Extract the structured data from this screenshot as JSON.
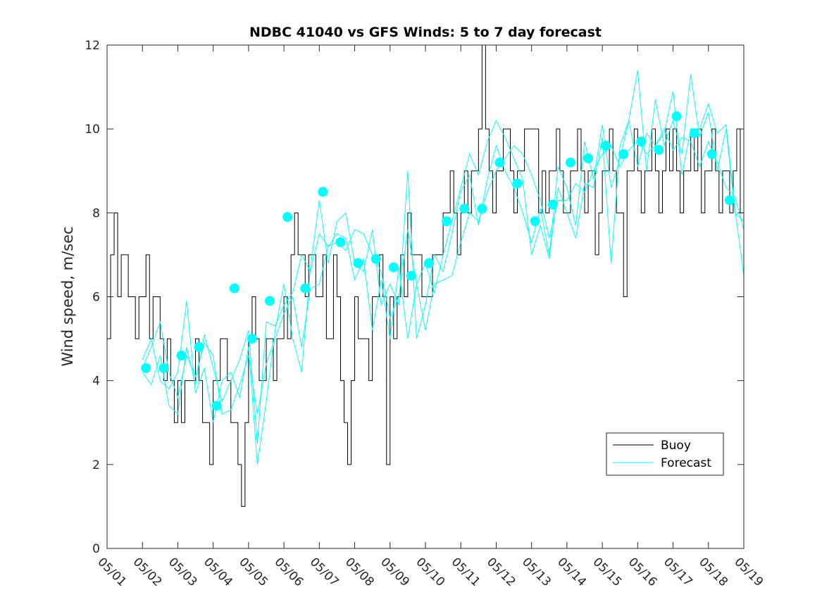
{
  "chart_data": {
    "type": "line",
    "title": "NDBC 41040 vs GFS Winds: 5 to 7 day forecast",
    "xlabel": "",
    "ylabel": "Wind speed, m/sec",
    "ylim": [
      0,
      12
    ],
    "xlim": [
      0,
      18
    ],
    "yticks": [
      0,
      2,
      4,
      6,
      8,
      10,
      12
    ],
    "xtick_labels": [
      "05/01",
      "05/02",
      "05/03",
      "05/04",
      "05/05",
      "05/06",
      "05/07",
      "05/08",
      "05/09",
      "05/10",
      "05/11",
      "05/12",
      "05/13",
      "05/14",
      "05/15",
      "05/16",
      "05/17",
      "05/18",
      "05/19"
    ],
    "grid": false,
    "legend": {
      "position": "lower-right",
      "entries": [
        {
          "label": "Buoy",
          "color": "#000000"
        },
        {
          "label": "Forecast",
          "color": "#00ffff"
        }
      ]
    },
    "series": [
      {
        "name": "Buoy",
        "color": "#000000",
        "x": [
          0,
          0.1,
          0.2,
          0.3,
          0.4,
          0.5,
          0.6,
          0.7,
          0.8,
          0.9,
          1.0,
          1.1,
          1.2,
          1.3,
          1.4,
          1.5,
          1.6,
          1.7,
          1.8,
          1.9,
          2.0,
          2.1,
          2.2,
          2.3,
          2.4,
          2.5,
          2.6,
          2.7,
          2.8,
          2.9,
          3.0,
          3.1,
          3.2,
          3.3,
          3.4,
          3.5,
          3.6,
          3.7,
          3.8,
          3.9,
          4.0,
          4.1,
          4.2,
          4.3,
          4.4,
          4.5,
          4.6,
          4.7,
          4.8,
          4.9,
          5.0,
          5.1,
          5.2,
          5.3,
          5.4,
          5.5,
          5.6,
          5.7,
          5.8,
          5.9,
          6.0,
          6.1,
          6.2,
          6.3,
          6.4,
          6.5,
          6.6,
          6.7,
          6.8,
          6.9,
          7.0,
          7.1,
          7.2,
          7.3,
          7.4,
          7.5,
          7.6,
          7.7,
          7.8,
          7.9,
          8.0,
          8.1,
          8.2,
          8.3,
          8.4,
          8.5,
          8.6,
          8.7,
          8.8,
          8.9,
          9.0,
          9.1,
          9.2,
          9.3,
          9.4,
          9.5,
          9.6,
          9.7,
          9.8,
          9.9,
          10.0,
          10.1,
          10.2,
          10.3,
          10.4,
          10.5,
          10.6,
          10.7,
          10.8,
          10.9,
          11.0,
          11.1,
          11.2,
          11.3,
          11.4,
          11.5,
          11.6,
          11.7,
          11.8,
          11.9,
          12.0,
          12.1,
          12.2,
          12.3,
          12.4,
          12.5,
          12.6,
          12.7,
          12.8,
          12.9,
          13.0,
          13.1,
          13.2,
          13.3,
          13.4,
          13.5,
          13.6,
          13.7,
          13.8,
          13.9,
          14.0,
          14.1,
          14.2,
          14.3,
          14.4,
          14.5,
          14.6,
          14.7,
          14.8,
          14.9,
          15.0,
          15.1,
          15.2,
          15.3,
          15.4,
          15.5,
          15.6,
          15.7,
          15.8,
          15.9,
          16.0,
          16.1,
          16.2,
          16.3,
          16.4,
          16.5,
          16.6,
          16.7,
          16.8,
          16.9,
          17.0,
          17.1,
          17.2,
          17.3,
          17.4,
          17.5,
          17.6,
          17.7,
          17.8,
          17.9
        ],
        "values": [
          5,
          7,
          8,
          6,
          7,
          7,
          6,
          6,
          5,
          6,
          6,
          7,
          5,
          6,
          6,
          5,
          4,
          5,
          4,
          3,
          4,
          3,
          4,
          4,
          4,
          5,
          4,
          3,
          3,
          2,
          4,
          4,
          5,
          5,
          4,
          3,
          3,
          2,
          1,
          3,
          5,
          6,
          5,
          4,
          4,
          5,
          5,
          4,
          5,
          5,
          6,
          5,
          7,
          8,
          7,
          7,
          6,
          7,
          7,
          6,
          6,
          7,
          5,
          5,
          7,
          6,
          4,
          3,
          2,
          4,
          6,
          5,
          5,
          5,
          4,
          6,
          6,
          7,
          6,
          2,
          6,
          5,
          6,
          7,
          6,
          8,
          7,
          7,
          7,
          6,
          6,
          6,
          7,
          7,
          7,
          8,
          8,
          9,
          8,
          7,
          8,
          9,
          8,
          9,
          9,
          10,
          12,
          10,
          9,
          8,
          9,
          9,
          10,
          10,
          9,
          8,
          9,
          9,
          10,
          10,
          10,
          10,
          8,
          9,
          8,
          9,
          9,
          10,
          9,
          8,
          8,
          9,
          9,
          10,
          9,
          8,
          9,
          9,
          7,
          8,
          9,
          9,
          10,
          9,
          8,
          8,
          6,
          9,
          9,
          10,
          9,
          8,
          9,
          9,
          10,
          9,
          8,
          9,
          10,
          9,
          10,
          9,
          8,
          9,
          9,
          10,
          9,
          10,
          8,
          9,
          9,
          10,
          9,
          8,
          9,
          9,
          8,
          9,
          10,
          8
        ]
      },
      {
        "name": "Forecast",
        "color": "#00ffff",
        "x": [
          1.0,
          1.25,
          1.5,
          1.75,
          2.0,
          2.25,
          2.5,
          2.75,
          3.0,
          3.25,
          3.5,
          3.75,
          4.0,
          4.25,
          4.5,
          4.75,
          5.0,
          5.25,
          5.5,
          5.75,
          6.0,
          6.25,
          6.5,
          6.75,
          7.0,
          7.25,
          7.5,
          7.75,
          8.0,
          8.25,
          8.5,
          8.75,
          9.0,
          9.25,
          9.5,
          9.75,
          10.0,
          10.25,
          10.5,
          10.75,
          11.0,
          11.25,
          11.5,
          11.75,
          12.0,
          12.25,
          12.5,
          12.75,
          13.0,
          13.25,
          13.5,
          13.75,
          14.0,
          14.25,
          14.5,
          14.75,
          15.0,
          15.25,
          15.5,
          15.75,
          16.0,
          16.25,
          16.5,
          16.75,
          17.0,
          17.25,
          17.5,
          17.75,
          18.0
        ],
        "values": [
          4.3,
          4.8,
          5.4,
          4.2,
          3.6,
          4.6,
          4.1,
          4.9,
          4.6,
          3.2,
          3.3,
          3.9,
          4.6,
          3.2,
          4.4,
          5.0,
          5.6,
          6.0,
          4.8,
          6.2,
          6.3,
          7.2,
          7.3,
          7.1,
          7.6,
          7.5,
          7.0,
          6.6,
          5.5,
          6.0,
          7.6,
          6.3,
          5.2,
          6.3,
          6.4,
          6.5,
          7.3,
          8.0,
          7.8,
          8.5,
          9.0,
          9.3,
          9.6,
          9.4,
          8.9,
          8.3,
          7.4,
          8.3,
          8.3,
          8.7,
          8.5,
          9.0,
          9.4,
          9.6,
          9.1,
          9.5,
          9.7,
          9.4,
          9.6,
          10.0,
          9.5,
          9.8,
          9.7,
          9.1,
          9.7,
          9.2,
          8.6,
          8.4,
          7.6
        ]
      },
      {
        "name": "Forecast",
        "color": "#00ffff",
        "x": [
          1.0,
          1.25,
          1.5,
          1.75,
          2.0,
          2.25,
          2.5,
          2.75,
          3.0,
          3.25,
          3.5,
          3.75,
          4.0,
          4.25,
          4.5,
          4.75,
          5.0,
          5.25,
          5.5,
          5.75,
          6.0,
          6.25,
          6.5,
          6.75,
          7.0,
          7.25,
          7.5,
          7.75,
          8.0,
          8.25,
          8.5,
          8.75,
          9.0,
          9.25,
          9.5,
          9.75,
          10.0,
          10.25,
          10.5,
          10.75,
          11.0,
          11.25,
          11.5,
          11.75,
          12.0,
          12.25,
          12.5,
          12.75,
          13.0,
          13.25,
          13.5,
          13.75,
          14.0,
          14.25,
          14.5,
          14.75,
          15.0,
          15.25,
          15.5,
          15.75,
          16.0,
          16.25,
          16.5,
          16.75,
          17.0,
          17.25,
          17.5,
          17.75,
          18.0
        ],
        "values": [
          4.5,
          5.0,
          4.0,
          3.8,
          4.2,
          5.9,
          3.7,
          4.3,
          3.0,
          4.0,
          4.2,
          3.6,
          4.8,
          2.0,
          3.5,
          5.2,
          6.3,
          5.0,
          4.2,
          6.7,
          8.3,
          6.8,
          7.8,
          8.0,
          6.8,
          6.6,
          7.6,
          5.8,
          6.3,
          5.8,
          9.0,
          5.0,
          5.8,
          7.0,
          6.6,
          7.5,
          8.5,
          8.9,
          7.7,
          8.8,
          9.6,
          9.0,
          8.6,
          8.0,
          7.3,
          8.1,
          7.0,
          9.1,
          8.6,
          7.7,
          9.7,
          8.8,
          10.1,
          8.6,
          9.3,
          10.2,
          11.4,
          9.0,
          10.7,
          9.6,
          10.2,
          9.4,
          11.3,
          9.8,
          10.4,
          9.0,
          10.0,
          8.0,
          7.8
        ]
      },
      {
        "name": "Forecast",
        "color": "#00ffff",
        "x": [
          1.0,
          1.25,
          1.5,
          1.75,
          2.0,
          2.25,
          2.5,
          2.75,
          3.0,
          3.25,
          3.5,
          3.75,
          4.0,
          4.25,
          4.5,
          4.75,
          5.0,
          5.25,
          5.5,
          5.75,
          6.0,
          6.25,
          6.5,
          6.75,
          7.0,
          7.25,
          7.5,
          7.75,
          8.0,
          8.25,
          8.5,
          8.75,
          9.0,
          9.25,
          9.5,
          9.75,
          10.0,
          10.25,
          10.5,
          10.75,
          11.0,
          11.25,
          11.5,
          11.75,
          12.0,
          12.25,
          12.5,
          12.75,
          13.0,
          13.25,
          13.5,
          13.75,
          14.0,
          14.25,
          14.5,
          14.75,
          15.0,
          15.25,
          15.5,
          15.75,
          16.0,
          16.25,
          16.5,
          16.75,
          17.0,
          17.25,
          17.5,
          17.75,
          18.0
        ],
        "values": [
          4.2,
          3.9,
          4.6,
          3.4,
          3.2,
          4.8,
          3.9,
          5.1,
          4.3,
          3.5,
          4.0,
          4.5,
          5.2,
          2.5,
          5.4,
          5.3,
          5.8,
          6.1,
          7.0,
          6.6,
          7.5,
          7.2,
          7.5,
          7.4,
          6.4,
          6.9,
          5.2,
          6.4,
          5.0,
          6.7,
          5.0,
          6.3,
          6.8,
          6.1,
          7.0,
          7.8,
          8.6,
          9.4,
          8.9,
          9.7,
          10.2,
          9.8,
          9.3,
          8.8,
          7.0,
          7.7,
          6.9,
          8.6,
          8.0,
          7.4,
          8.7,
          8.6,
          9.8,
          6.8,
          9.6,
          10.2,
          9.1,
          9.9,
          9.6,
          9.9,
          10.9,
          8.9,
          10.0,
          10.0,
          10.6,
          9.9,
          10.1,
          8.1,
          6.5
        ]
      }
    ],
    "markers": {
      "name": "Forecast",
      "color": "#00ffff",
      "x": [
        1.1,
        1.6,
        2.1,
        2.6,
        3.1,
        3.6,
        4.1,
        4.6,
        5.1,
        5.6,
        6.1,
        6.6,
        7.1,
        7.6,
        8.1,
        8.6,
        9.1,
        9.6,
        10.1,
        10.6,
        11.1,
        11.6,
        12.1,
        12.6,
        13.1,
        13.6,
        14.1,
        14.6,
        15.1,
        15.6,
        16.1,
        16.6,
        17.1,
        17.6
      ],
      "values": [
        4.3,
        4.3,
        4.6,
        4.8,
        3.4,
        6.2,
        5.0,
        5.9,
        7.9,
        6.2,
        8.5,
        7.3,
        6.8,
        6.9,
        6.7,
        6.5,
        6.8,
        7.8,
        8.1,
        8.1,
        9.2,
        8.7,
        7.8,
        8.2,
        9.2,
        9.3,
        9.6,
        9.4,
        9.7,
        9.5,
        10.3,
        9.9,
        9.4,
        8.3
      ]
    }
  }
}
